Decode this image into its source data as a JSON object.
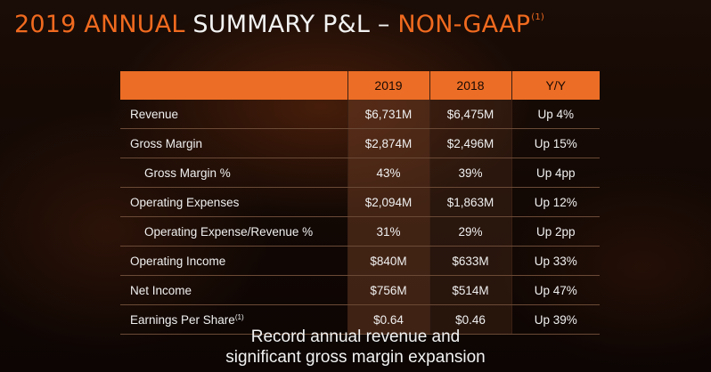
{
  "title": {
    "part1": "2019 ANNUAL",
    "part2": " SUMMARY P&L – ",
    "part3": "NON-GAAP",
    "note": "(1)"
  },
  "table": {
    "headers": [
      "",
      "2019",
      "2018",
      "Y/Y"
    ],
    "rows": [
      {
        "label": "Revenue",
        "note": "",
        "y2019": "$6,731M",
        "y2018": "$6,475M",
        "yoy": "Up 4%"
      },
      {
        "label": "Gross Margin",
        "note": "",
        "y2019": "$2,874M",
        "y2018": "$2,496M",
        "yoy": "Up 15%"
      },
      {
        "label": "Gross Margin %",
        "note": "",
        "y2019": "43%",
        "y2018": "39%",
        "yoy": "Up 4pp"
      },
      {
        "label": "Operating Expenses",
        "note": "",
        "y2019": "$2,094M",
        "y2018": "$1,863M",
        "yoy": "Up 12%"
      },
      {
        "label": "Operating Expense/Revenue %",
        "note": "",
        "y2019": "31%",
        "y2018": "29%",
        "yoy": "Up 2pp"
      },
      {
        "label": "Operating Income",
        "note": "",
        "y2019": "$840M",
        "y2018": "$633M",
        "yoy": "Up 33%"
      },
      {
        "label": "Net Income",
        "note": "",
        "y2019": "$756M",
        "y2018": "$514M",
        "yoy": "Up 47%"
      },
      {
        "label": "Earnings Per Share",
        "note": "(1)",
        "y2019": "$0.64",
        "y2018": "$0.46",
        "yoy": "Up 39%"
      }
    ]
  },
  "footer": {
    "line1": "Record annual revenue and",
    "line2": "significant gross margin expansion"
  },
  "colors": {
    "accent": "#f06a1f",
    "header_bg": "#ec6d25",
    "background": "#120804"
  }
}
